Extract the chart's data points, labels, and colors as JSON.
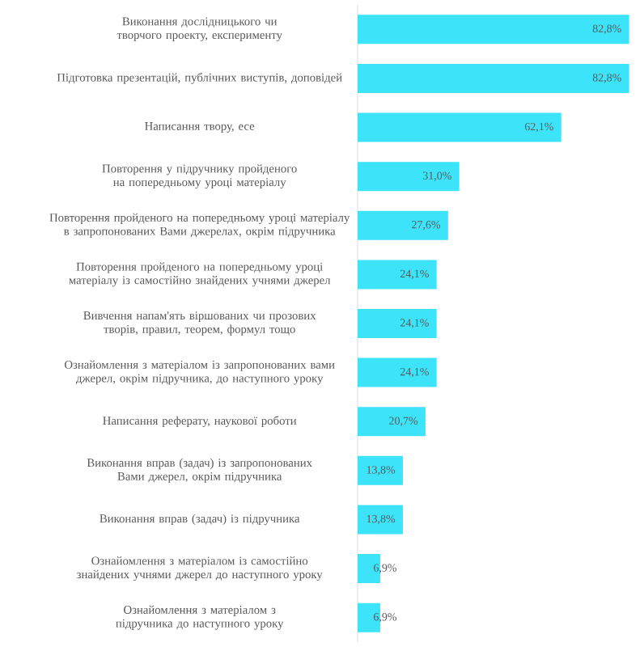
{
  "chart_data": {
    "type": "bar",
    "orientation": "horizontal",
    "categories": [
      "Виконання дослідницького чи творчого проекту, експерименту",
      "Підготовка презентацій, публічних виступів, доповідей",
      "Написання твору, есе",
      "Повторення у підручнику пройденого на попередньому уроці матеріалу",
      "Повторення пройденого на попередньому уроці матеріалу в запропонованих Вами джерелах, окрім підручника",
      "Повторення пройденого на попередньому уроці матеріалу із самостійно знайдених учнями джерел",
      "Вивчення напам'ять віршованих чи прозових творів, правил, теорем, формул тощо",
      "Ознайомлення з матеріалом із запропонованих вами джерел, окрім підручника, до наступного уроку",
      "Написання реферату, наукової роботи",
      "Виконання вправ (задач) із запропонованих Вами джерел, окрім підручника",
      "Виконання вправ (задач) із підручника",
      "Ознайомлення з матеріалом із самостійно знайдених учнями джерел до наступного уроку",
      "Ознайомлення з матеріалом з підручника до наступного уроку"
    ],
    "values": [
      82.8,
      82.8,
      62.1,
      31.0,
      27.6,
      24.1,
      24.1,
      24.1,
      20.7,
      13.8,
      13.8,
      6.9,
      6.9
    ],
    "value_labels": [
      "82,8%",
      "82,8%",
      "62,1%",
      "31,0%",
      "27,6%",
      "24,1%",
      "24,1%",
      "24,1%",
      "20,7%",
      "13,8%",
      "13,8%",
      "6,9%",
      "6,9%"
    ],
    "color": "#3de3f8"
  }
}
